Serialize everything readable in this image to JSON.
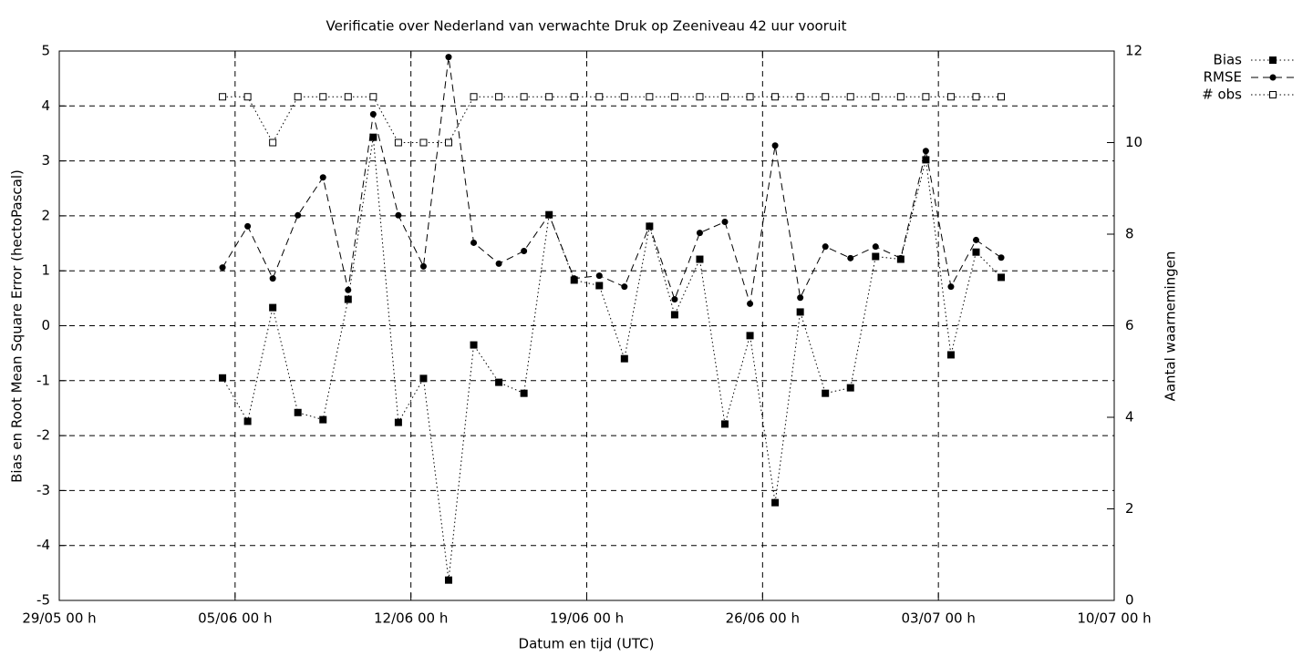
{
  "chart_data": {
    "type": "line",
    "title": "Verificatie over Nederland van verwachte Druk op Zeeniveau 42 uur vooruit",
    "x_label": "Datum en tijd (UTC)",
    "y_label": "Bias en Root Mean Square Error (hectoPascal)",
    "y2_label": "Aantal waarnemingen",
    "x": [
      "04/06 12 h",
      "05/06 12 h",
      "06/06 12 h",
      "07/06 12 h",
      "08/06 12 h",
      "09/06 12 h",
      "10/06 12 h",
      "11/06 12 h",
      "12/06 12 h",
      "13/06 12 h",
      "14/06 12 h",
      "15/06 12 h",
      "16/06 12 h",
      "17/06 12 h",
      "18/06 12 h",
      "19/06 12 h",
      "20/06 12 h",
      "21/06 12 h",
      "22/06 12 h",
      "23/06 12 h",
      "24/06 12 h",
      "25/06 12 h",
      "26/06 12 h",
      "27/06 12 h",
      "28/06 12 h",
      "29/06 12 h",
      "30/06 12 h",
      "01/07 12 h",
      "02/07 12 h",
      "03/07 12 h",
      "04/07 12 h",
      "05/07 12 h"
    ],
    "xlim": [
      "29/05 00 h",
      "10/07 00 h"
    ],
    "xticks": [
      "29/05 00 h",
      "05/06 00 h",
      "12/06 00 h",
      "19/06 00 h",
      "26/06 00 h",
      "03/07 00 h",
      "10/07 00 h"
    ],
    "ylim": [
      -5,
      5
    ],
    "yticks": [
      -5,
      -4,
      -3,
      -2,
      -1,
      0,
      1,
      2,
      3,
      4,
      5
    ],
    "y2lim": [
      0,
      12
    ],
    "y2ticks": [
      0,
      2,
      4,
      6,
      8,
      10,
      12
    ],
    "grid": true,
    "legend_position": "top-right-outside",
    "series": [
      {
        "name": "Bias",
        "color": "#000000",
        "line_style": "dotted",
        "marker": "filled-square",
        "values": [
          -0.95,
          -1.74,
          0.33,
          -1.58,
          -1.71,
          0.48,
          3.43,
          -1.76,
          -0.96,
          -4.63,
          -0.35,
          -1.03,
          -1.23,
          2.02,
          0.83,
          0.73,
          -0.6,
          1.81,
          0.2,
          1.21,
          -1.79,
          -0.18,
          -3.22,
          0.25,
          -1.23,
          -1.13,
          1.26,
          1.21,
          3.02,
          -0.53,
          1.34,
          0.88
        ]
      },
      {
        "name": "RMSE",
        "color": "#000000",
        "line_style": "dashed",
        "marker": "filled-circle",
        "values": [
          1.06,
          1.81,
          0.86,
          2.01,
          2.7,
          0.65,
          3.85,
          2.01,
          1.08,
          4.89,
          1.51,
          1.13,
          1.36,
          2.02,
          0.86,
          0.91,
          0.71,
          1.82,
          0.48,
          1.69,
          1.89,
          0.4,
          3.28,
          0.51,
          1.44,
          1.23,
          1.44,
          1.23,
          3.18,
          0.71,
          1.56,
          1.24
        ]
      },
      {
        "name": "# obs",
        "color": "#000000",
        "line_style": "dotted",
        "marker": "open-square",
        "axis": "y2",
        "values": [
          11,
          11,
          10,
          11,
          11,
          11,
          11,
          10,
          10,
          10,
          11,
          11,
          11,
          11,
          11,
          11,
          11,
          11,
          11,
          11,
          11,
          11,
          11,
          11,
          11,
          11,
          11,
          11,
          11,
          11,
          11,
          11
        ]
      }
    ]
  }
}
